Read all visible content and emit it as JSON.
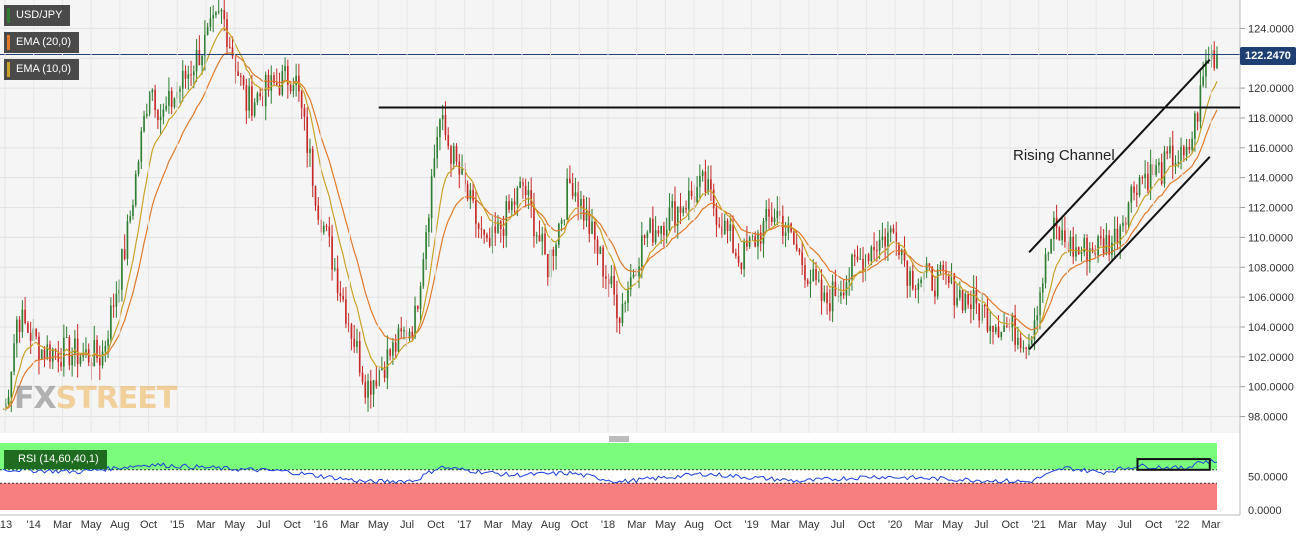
{
  "header": {
    "symbol": "USD/JPY",
    "indicators": [
      {
        "label": "EMA (20,0)",
        "color": "#e07a2a"
      },
      {
        "label": "EMA (10,0)",
        "color": "#c9a227"
      }
    ]
  },
  "current_price": "122.2470",
  "annotation": "Rising Channel",
  "watermark": {
    "fx": "FX",
    "street": "STREET"
  },
  "rsi": {
    "label": "RSI (14,60,40,1)",
    "level_labels": [
      "50.0000",
      "0.0000"
    ]
  },
  "colors": {
    "bull": "#2e7d32",
    "bear": "#c62828",
    "ema20": "#e07a2a",
    "ema10": "#c9a227",
    "rsi_line": "#1c3fd6",
    "rsi_upper": "#7cfc7c",
    "rsi_lower": "#f77f7f",
    "price_tag": "#1f3f73"
  },
  "chart_data": [
    {
      "type": "candlestick",
      "title": "USD/JPY",
      "ylim": [
        96.9,
        125.9
      ],
      "y_ticks": [
        "98.0000",
        "100.0000",
        "102.0000",
        "104.0000",
        "106.0000",
        "108.0000",
        "110.0000",
        "112.0000",
        "114.0000",
        "116.0000",
        "118.0000",
        "120.0000",
        "122.0000",
        "124.0000"
      ],
      "x_ticks": [
        "'13",
        "'14",
        "Mar",
        "May",
        "Aug",
        "Oct",
        "'15",
        "Mar",
        "May",
        "Jul",
        "Oct",
        "'16",
        "Mar",
        "May",
        "Jul",
        "Oct",
        "'17",
        "Mar",
        "May",
        "Aug",
        "Oct",
        "'18",
        "Mar",
        "May",
        "Aug",
        "Oct",
        "'19",
        "Mar",
        "May",
        "Jul",
        "Oct",
        "'20",
        "Mar",
        "May",
        "Jul",
        "Oct",
        "'21",
        "Mar",
        "May",
        "Jul",
        "Oct",
        "'22",
        "Mar"
      ],
      "period": "weekly",
      "last": 122.247,
      "key_points": [
        {
          "date": "2013-12",
          "close": 98.5
        },
        {
          "date": "2014-01",
          "close": 104.8
        },
        {
          "date": "2014-03",
          "close": 102.5
        },
        {
          "date": "2014-08",
          "close": 102.0
        },
        {
          "date": "2014-10",
          "close": 109.5
        },
        {
          "date": "2014-12",
          "close": 120.5
        },
        {
          "date": "2015-01",
          "close": 118.0
        },
        {
          "date": "2015-06",
          "close": 125.0
        },
        {
          "date": "2015-08",
          "close": 119.0
        },
        {
          "date": "2015-12",
          "close": 121.0
        },
        {
          "date": "2016-02",
          "close": 112.0
        },
        {
          "date": "2016-06",
          "close": 100.0
        },
        {
          "date": "2016-10",
          "close": 104.5
        },
        {
          "date": "2016-12",
          "close": 118.0
        },
        {
          "date": "2017-04",
          "close": 109.0
        },
        {
          "date": "2017-07",
          "close": 113.5
        },
        {
          "date": "2017-09",
          "close": 108.0
        },
        {
          "date": "2017-11",
          "close": 114.0
        },
        {
          "date": "2018-03",
          "close": 105.0
        },
        {
          "date": "2018-05",
          "close": 110.0
        },
        {
          "date": "2018-10",
          "close": 113.5
        },
        {
          "date": "2019-01",
          "close": 108.5
        },
        {
          "date": "2019-04",
          "close": 111.8
        },
        {
          "date": "2019-08",
          "close": 105.5
        },
        {
          "date": "2019-12",
          "close": 109.5
        },
        {
          "date": "2020-02",
          "close": 110.5
        },
        {
          "date": "2020-03",
          "close": 107.5
        },
        {
          "date": "2020-06",
          "close": 107.0
        },
        {
          "date": "2020-10",
          "close": 104.5
        },
        {
          "date": "2021-01",
          "close": 103.2
        },
        {
          "date": "2021-03",
          "close": 110.5
        },
        {
          "date": "2021-05",
          "close": 109.0
        },
        {
          "date": "2021-08",
          "close": 109.8
        },
        {
          "date": "2021-10",
          "close": 114.0
        },
        {
          "date": "2021-12",
          "close": 114.5
        },
        {
          "date": "2022-01",
          "close": 115.5
        },
        {
          "date": "2022-02",
          "close": 115.0
        },
        {
          "date": "2022-03",
          "close": 118.5
        },
        {
          "date": "2022-03-end",
          "close": 122.25
        }
      ],
      "horizontal_levels": [
        118.7
      ],
      "channel": {
        "upper": [
          {
            "date": "2021-01",
            "y": 109.0
          },
          {
            "date": "2022-04",
            "y": 121.9
          }
        ],
        "lower": [
          {
            "date": "2021-01",
            "y": 102.5
          },
          {
            "date": "2022-04",
            "y": 115.4
          }
        ]
      }
    },
    {
      "type": "line",
      "title": "RSI (14,60,40,1)",
      "ylim": [
        0,
        100
      ],
      "zones": {
        "upper": [
          60,
          100
        ],
        "lower": [
          0,
          40
        ]
      },
      "y_ticks": [
        "50.0000",
        "0.0000"
      ],
      "key_points": [
        {
          "date": "2014-01",
          "y": 60
        },
        {
          "date": "2014-06",
          "y": 57
        },
        {
          "date": "2014-12",
          "y": 68
        },
        {
          "date": "2015-06",
          "y": 62
        },
        {
          "date": "2015-11",
          "y": 58
        },
        {
          "date": "2016-06",
          "y": 42
        },
        {
          "date": "2016-10",
          "y": 44
        },
        {
          "date": "2016-12",
          "y": 64
        },
        {
          "date": "2017-06",
          "y": 52
        },
        {
          "date": "2017-11",
          "y": 55
        },
        {
          "date": "2018-03",
          "y": 42
        },
        {
          "date": "2018-10",
          "y": 54
        },
        {
          "date": "2019-06",
          "y": 43
        },
        {
          "date": "2019-12",
          "y": 50
        },
        {
          "date": "2020-05",
          "y": 47
        },
        {
          "date": "2021-01",
          "y": 42
        },
        {
          "date": "2021-04",
          "y": 63
        },
        {
          "date": "2021-07",
          "y": 56
        },
        {
          "date": "2021-10",
          "y": 66
        },
        {
          "date": "2022-02",
          "y": 62
        },
        {
          "date": "2022-03",
          "y": 72
        }
      ]
    }
  ]
}
